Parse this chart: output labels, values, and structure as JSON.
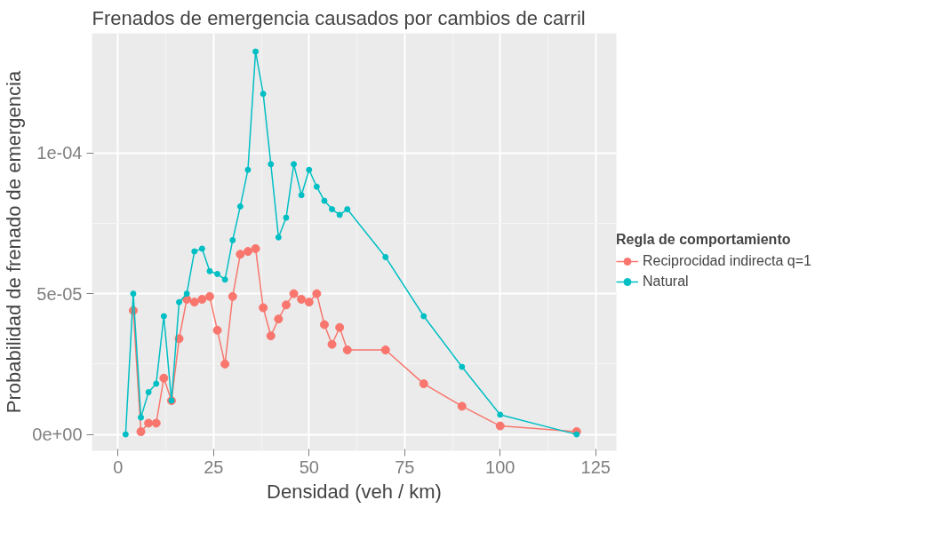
{
  "chart_data": {
    "type": "line",
    "title": "Frenados de emergencia causados por cambios de carril",
    "xlabel": "Densidad (veh / km)",
    "ylabel": "Probabilidad de frenado de emergencia",
    "legend_title": "Regla de comportamiento",
    "series": [
      {
        "name": "Reciprocidad indirecta q=1",
        "color": "#f8766d",
        "x": [
          4,
          6,
          8,
          10,
          12,
          14,
          16,
          18,
          20,
          22,
          24,
          26,
          28,
          30,
          32,
          34,
          36,
          38,
          40,
          42,
          44,
          46,
          48,
          50,
          52,
          54,
          56,
          58,
          60,
          70,
          80,
          90,
          100,
          120
        ],
        "values": [
          4.4e-05,
          1e-06,
          4e-06,
          4e-06,
          2e-05,
          1.2e-05,
          3.4e-05,
          4.8e-05,
          4.7e-05,
          4.8e-05,
          4.9e-05,
          3.7e-05,
          2.5e-05,
          4.9e-05,
          6.4e-05,
          6.5e-05,
          6.6e-05,
          4.5e-05,
          3.5e-05,
          4.1e-05,
          4.6e-05,
          5e-05,
          4.8e-05,
          4.7e-05,
          5e-05,
          3.9e-05,
          3.2e-05,
          3.8e-05,
          3e-05,
          3e-05,
          1.8e-05,
          1e-05,
          3e-06,
          1e-06
        ]
      },
      {
        "name": "Natural",
        "color": "#00bfc4",
        "x": [
          2,
          4,
          6,
          8,
          10,
          12,
          14,
          16,
          18,
          20,
          22,
          24,
          26,
          28,
          30,
          32,
          34,
          36,
          38,
          40,
          42,
          44,
          46,
          48,
          50,
          52,
          54,
          56,
          58,
          60,
          70,
          80,
          90,
          100,
          120
        ],
        "values": [
          0,
          5e-05,
          6e-06,
          1.5e-05,
          1.8e-05,
          4.2e-05,
          1.2e-05,
          4.7e-05,
          5e-05,
          6.5e-05,
          6.6e-05,
          5.8e-05,
          5.7e-05,
          5.5e-05,
          6.9e-05,
          8.1e-05,
          9.4e-05,
          0.000136,
          0.000121,
          9.6e-05,
          7e-05,
          7.7e-05,
          9.6e-05,
          8.5e-05,
          9.4e-05,
          8.8e-05,
          8.3e-05,
          8e-05,
          7.8e-05,
          8e-05,
          6.3e-05,
          4.2e-05,
          2.4e-05,
          7e-06,
          0
        ]
      }
    ],
    "xlim": [
      -6.8,
      130.4
    ],
    "xticks": [
      0,
      25,
      50,
      75,
      100,
      125
    ],
    "ylim": [
      -5.8e-06,
      0.0001425
    ],
    "yticks": [
      {
        "value": 0,
        "label": "0e+00"
      },
      {
        "value": 5e-05,
        "label": "5e-05"
      },
      {
        "value": 0.0001,
        "label": "1e-04"
      }
    ],
    "grid": true,
    "legend": "right",
    "marker": "circle",
    "line_style": "solid"
  }
}
